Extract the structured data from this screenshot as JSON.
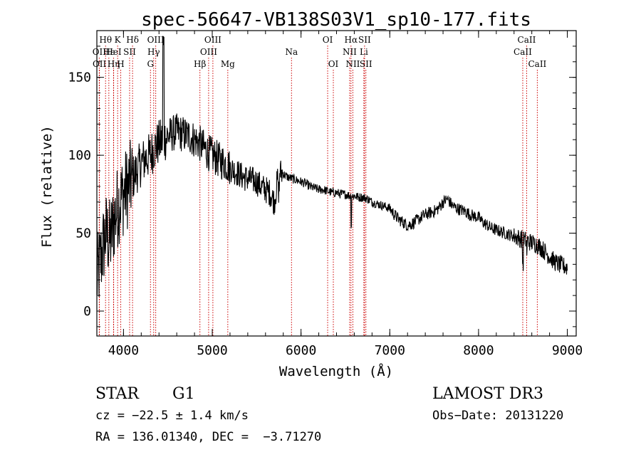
{
  "chart_data": {
    "type": "line",
    "title": "spec-56647-VB138S03V1_sp10-177.fits",
    "xlabel": "Wavelength (Å)",
    "ylabel": "Flux (relative)",
    "xlim": [
      3700,
      9100
    ],
    "ylim": [
      -16,
      180
    ],
    "xticks": [
      4000,
      5000,
      6000,
      7000,
      8000,
      9000
    ],
    "yticks": [
      0,
      50,
      100,
      150
    ],
    "series": [
      {
        "name": "spectrum",
        "x": [
          3700,
          3750,
          3800,
          3850,
          3900,
          3950,
          4000,
          4050,
          4100,
          4150,
          4200,
          4250,
          4300,
          4350,
          4400,
          4450,
          4500,
          4550,
          4600,
          4650,
          4700,
          4750,
          4800,
          4850,
          4900,
          4950,
          5000,
          5050,
          5100,
          5150,
          5200,
          5250,
          5300,
          5350,
          5400,
          5450,
          5500,
          5550,
          5600,
          5650,
          5700,
          5750,
          5800,
          5850,
          5900,
          5950,
          6000,
          6050,
          6100,
          6150,
          6200,
          6250,
          6300,
          6350,
          6400,
          6450,
          6500,
          6550,
          6600,
          6650,
          6700,
          6750,
          6800,
          6850,
          6900,
          6950,
          7000,
          7050,
          7100,
          7150,
          7200,
          7250,
          7300,
          7350,
          7400,
          7450,
          7500,
          7550,
          7600,
          7650,
          7700,
          7750,
          7800,
          7850,
          7900,
          7950,
          8000,
          8050,
          8100,
          8150,
          8200,
          8250,
          8300,
          8350,
          8400,
          8450,
          8500,
          8550,
          8600,
          8650,
          8700,
          8750,
          8800,
          8850,
          8900,
          8950,
          9000
        ],
        "y": [
          20,
          35,
          50,
          45,
          60,
          70,
          75,
          80,
          85,
          90,
          95,
          98,
          100,
          105,
          108,
          110,
          112,
          114,
          115,
          114,
          113,
          112,
          110,
          108,
          105,
          102,
          100,
          98,
          96,
          95,
          92,
          90,
          88,
          86,
          85,
          84,
          83,
          80,
          78,
          76,
          70,
          90,
          88,
          86,
          85,
          84,
          83,
          82,
          80,
          79,
          78,
          78,
          77,
          76,
          76,
          75,
          75,
          74,
          74,
          73,
          73,
          72,
          70,
          69,
          68,
          67,
          66,
          62,
          59,
          57,
          55,
          56,
          58,
          60,
          62,
          63,
          64,
          66,
          70,
          72,
          68,
          66,
          65,
          64,
          62,
          61,
          60,
          57,
          55,
          53,
          52,
          51,
          50,
          49,
          48,
          47,
          46,
          45,
          44,
          43,
          41,
          38,
          35,
          32,
          30,
          29,
          28
        ]
      }
    ],
    "lines": [
      {
        "label": "Hθ",
        "x": 3798,
        "row": 0
      },
      {
        "label": "OII",
        "x": 3727,
        "row": 1
      },
      {
        "label": "OII",
        "x": 3729,
        "row": 2
      },
      {
        "label": "Hε",
        "x": 3835,
        "row": 1
      },
      {
        "label": "Hη",
        "x": 3889,
        "row": 2
      },
      {
        "label": "K",
        "x": 3934,
        "row": 0
      },
      {
        "label": "HeI",
        "x": 3888,
        "row": 1
      },
      {
        "label": "SII",
        "x": 4069,
        "row": 1
      },
      {
        "label": "H",
        "x": 3969,
        "row": 2
      },
      {
        "label": "Hδ",
        "x": 4102,
        "row": 0
      },
      {
        "label": "OIII",
        "x": 4363,
        "row": 0
      },
      {
        "label": "Hγ",
        "x": 4340,
        "row": 1
      },
      {
        "label": "G",
        "x": 4304,
        "row": 2
      },
      {
        "label": "Hβ",
        "x": 4861,
        "row": 2
      },
      {
        "label": "OIII",
        "x": 5007,
        "row": 0
      },
      {
        "label": "OIII",
        "x": 4959,
        "row": 1
      },
      {
        "label": "Mg",
        "x": 5175,
        "row": 2
      },
      {
        "label": "Na",
        "x": 5893,
        "row": 1
      },
      {
        "label": "OI",
        "x": 6300,
        "row": 0
      },
      {
        "label": "OI",
        "x": 6364,
        "row": 2
      },
      {
        "label": "Hα",
        "x": 6563,
        "row": 0
      },
      {
        "label": "NII",
        "x": 6548,
        "row": 1
      },
      {
        "label": "NII",
        "x": 6584,
        "row": 2
      },
      {
        "label": "SII",
        "x": 6716,
        "row": 0
      },
      {
        "label": "Li",
        "x": 6708,
        "row": 1
      },
      {
        "label": "SII",
        "x": 6731,
        "row": 2
      },
      {
        "label": "CaII",
        "x": 8542,
        "row": 0
      },
      {
        "label": "CaII",
        "x": 8498,
        "row": 1
      },
      {
        "label": "CaII",
        "x": 8662,
        "row": 2
      }
    ]
  },
  "info": {
    "class": "STAR",
    "subclass": "G1",
    "survey": "LAMOST DR3",
    "cz": "cz = −22.5 ± 1.4 km/s",
    "obs_date": "Obs−Date: 20131220",
    "radec": "RA = 136.01340, DEC =  −3.71270"
  },
  "colors": {
    "axis": "#000000",
    "line_marker": "#cc0000",
    "background": "#ffffff"
  }
}
